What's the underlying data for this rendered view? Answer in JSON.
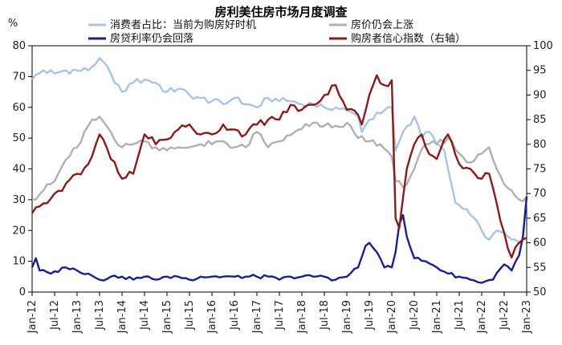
{
  "chart_data": {
    "type": "line",
    "title": "房利美住房市场月度调查",
    "left_axis": {
      "unit_label": "%",
      "ylim": [
        0,
        80
      ],
      "ticks": [
        0,
        10,
        20,
        30,
        40,
        50,
        60,
        70,
        80
      ]
    },
    "right_axis": {
      "ylim": [
        50,
        100
      ],
      "ticks": [
        50,
        55,
        60,
        65,
        70,
        75,
        80,
        85,
        90,
        95,
        100
      ]
    },
    "x_ticks": [
      "Jan-12",
      "Jul-12",
      "Jan-13",
      "Jul-13",
      "Jan-14",
      "Jul-14",
      "Jan-15",
      "Jul-15",
      "Jan-16",
      "Jul-16",
      "Jan-17",
      "Jul-17",
      "Jan-18",
      "Jul-18",
      "Jan-19",
      "Jul-19",
      "Jan-20",
      "Jul-20",
      "Jan-21",
      "Jul-21",
      "Jan-22",
      "Jul-22",
      "Jan-23"
    ],
    "x_range": [
      "Jan-12",
      "Jan-23"
    ],
    "legend_placement": "top",
    "series": [
      {
        "name": "消费者占比：当前为购房好时机",
        "axis": "left",
        "color": "#a9c3e6",
        "anchors": [
          [
            0,
            69
          ],
          [
            3,
            72
          ],
          [
            6,
            71
          ],
          [
            9,
            72
          ],
          [
            12,
            72
          ],
          [
            15,
            72
          ],
          [
            18,
            76
          ],
          [
            21,
            71
          ],
          [
            24,
            65
          ],
          [
            27,
            68
          ],
          [
            30,
            69
          ],
          [
            33,
            68
          ],
          [
            36,
            65
          ],
          [
            39,
            66
          ],
          [
            42,
            64
          ],
          [
            45,
            63
          ],
          [
            48,
            62
          ],
          [
            51,
            61
          ],
          [
            54,
            63
          ],
          [
            57,
            61
          ],
          [
            60,
            60
          ],
          [
            63,
            63
          ],
          [
            66,
            62
          ],
          [
            69,
            62
          ],
          [
            72,
            61
          ],
          [
            75,
            61
          ],
          [
            78,
            60
          ],
          [
            81,
            60
          ],
          [
            84,
            59
          ],
          [
            87,
            57
          ],
          [
            88,
            52
          ],
          [
            90,
            56
          ],
          [
            93,
            58
          ],
          [
            96,
            60
          ],
          [
            97,
            46
          ],
          [
            99,
            52
          ],
          [
            102,
            57
          ],
          [
            104,
            50
          ],
          [
            106,
            52
          ],
          [
            108,
            48
          ],
          [
            110,
            46
          ],
          [
            111,
            40
          ],
          [
            113,
            29
          ],
          [
            115,
            27
          ],
          [
            117,
            25
          ],
          [
            120,
            20
          ],
          [
            122,
            17
          ],
          [
            124,
            20
          ],
          [
            127,
            18
          ],
          [
            129,
            17
          ],
          [
            131,
            17
          ],
          [
            132,
            31
          ]
        ]
      },
      {
        "name": "房价仍会上涨",
        "axis": "left",
        "color": "#b0b0b0",
        "anchors": [
          [
            0,
            30
          ],
          [
            3,
            33
          ],
          [
            6,
            36
          ],
          [
            9,
            43
          ],
          [
            12,
            47
          ],
          [
            15,
            54
          ],
          [
            18,
            57
          ],
          [
            21,
            52
          ],
          [
            24,
            47
          ],
          [
            27,
            48
          ],
          [
            30,
            49
          ],
          [
            33,
            47
          ],
          [
            36,
            46
          ],
          [
            39,
            47
          ],
          [
            42,
            47
          ],
          [
            45,
            48
          ],
          [
            48,
            48
          ],
          [
            51,
            49
          ],
          [
            54,
            47
          ],
          [
            57,
            47
          ],
          [
            60,
            52
          ],
          [
            63,
            47
          ],
          [
            66,
            49
          ],
          [
            69,
            51
          ],
          [
            72,
            53
          ],
          [
            75,
            55
          ],
          [
            78,
            54
          ],
          [
            81,
            54
          ],
          [
            84,
            55
          ],
          [
            87,
            50
          ],
          [
            90,
            49
          ],
          [
            93,
            48
          ],
          [
            96,
            44
          ],
          [
            97,
            36
          ],
          [
            99,
            34
          ],
          [
            102,
            40
          ],
          [
            105,
            48
          ],
          [
            108,
            48
          ],
          [
            111,
            50
          ],
          [
            114,
            45
          ],
          [
            117,
            42
          ],
          [
            120,
            45
          ],
          [
            122,
            47
          ],
          [
            124,
            40
          ],
          [
            126,
            35
          ],
          [
            128,
            33
          ],
          [
            130,
            30
          ],
          [
            132,
            31
          ]
        ]
      },
      {
        "name": "房贷利率仍会回落",
        "axis": "left",
        "color": "#1a1f8c",
        "anchors": [
          [
            0,
            8
          ],
          [
            1,
            11
          ],
          [
            2,
            7
          ],
          [
            5,
            6
          ],
          [
            9,
            8
          ],
          [
            12,
            7
          ],
          [
            15,
            6
          ],
          [
            18,
            4
          ],
          [
            21,
            5
          ],
          [
            24,
            5
          ],
          [
            27,
            4
          ],
          [
            30,
            5
          ],
          [
            33,
            4
          ],
          [
            36,
            5
          ],
          [
            39,
            5
          ],
          [
            42,
            4
          ],
          [
            45,
            5
          ],
          [
            48,
            5
          ],
          [
            51,
            5
          ],
          [
            54,
            5
          ],
          [
            57,
            5
          ],
          [
            60,
            5
          ],
          [
            63,
            5
          ],
          [
            66,
            4
          ],
          [
            69,
            5
          ],
          [
            72,
            5
          ],
          [
            75,
            5
          ],
          [
            78,
            5
          ],
          [
            81,
            4
          ],
          [
            84,
            5
          ],
          [
            87,
            8
          ],
          [
            89,
            15
          ],
          [
            90,
            16
          ],
          [
            92,
            13
          ],
          [
            94,
            8
          ],
          [
            96,
            8
          ],
          [
            97,
            13
          ],
          [
            98,
            22
          ],
          [
            99,
            25
          ],
          [
            100,
            18
          ],
          [
            102,
            11
          ],
          [
            105,
            10
          ],
          [
            108,
            8
          ],
          [
            111,
            6
          ],
          [
            114,
            5
          ],
          [
            117,
            4
          ],
          [
            120,
            3
          ],
          [
            123,
            4
          ],
          [
            126,
            9
          ],
          [
            128,
            7
          ],
          [
            130,
            12
          ],
          [
            131,
            18
          ],
          [
            132,
            31
          ]
        ]
      },
      {
        "name": "购房者信心指数（右轴）",
        "axis": "right",
        "color": "#8b1a1a",
        "anchors": [
          [
            0,
            66
          ],
          [
            3,
            68
          ],
          [
            6,
            70
          ],
          [
            9,
            72
          ],
          [
            12,
            74
          ],
          [
            15,
            76
          ],
          [
            18,
            82
          ],
          [
            21,
            77
          ],
          [
            24,
            73
          ],
          [
            27,
            74
          ],
          [
            30,
            82
          ],
          [
            33,
            80
          ],
          [
            36,
            81
          ],
          [
            39,
            83
          ],
          [
            42,
            84
          ],
          [
            45,
            82
          ],
          [
            48,
            82
          ],
          [
            51,
            84
          ],
          [
            54,
            83
          ],
          [
            57,
            82
          ],
          [
            60,
            84
          ],
          [
            63,
            85
          ],
          [
            66,
            85
          ],
          [
            69,
            88
          ],
          [
            72,
            87
          ],
          [
            75,
            88
          ],
          [
            78,
            90
          ],
          [
            81,
            92
          ],
          [
            84,
            87
          ],
          [
            87,
            86
          ],
          [
            88,
            84
          ],
          [
            90,
            90
          ],
          [
            92,
            94
          ],
          [
            94,
            92
          ],
          [
            96,
            93
          ],
          [
            97,
            65
          ],
          [
            98,
            63
          ],
          [
            100,
            75
          ],
          [
            102,
            80
          ],
          [
            104,
            82
          ],
          [
            106,
            78
          ],
          [
            108,
            77
          ],
          [
            111,
            82
          ],
          [
            114,
            76
          ],
          [
            117,
            75
          ],
          [
            120,
            73
          ],
          [
            122,
            74
          ],
          [
            124,
            68
          ],
          [
            126,
            62
          ],
          [
            128,
            57
          ],
          [
            130,
            60
          ],
          [
            132,
            61
          ]
        ]
      }
    ]
  }
}
